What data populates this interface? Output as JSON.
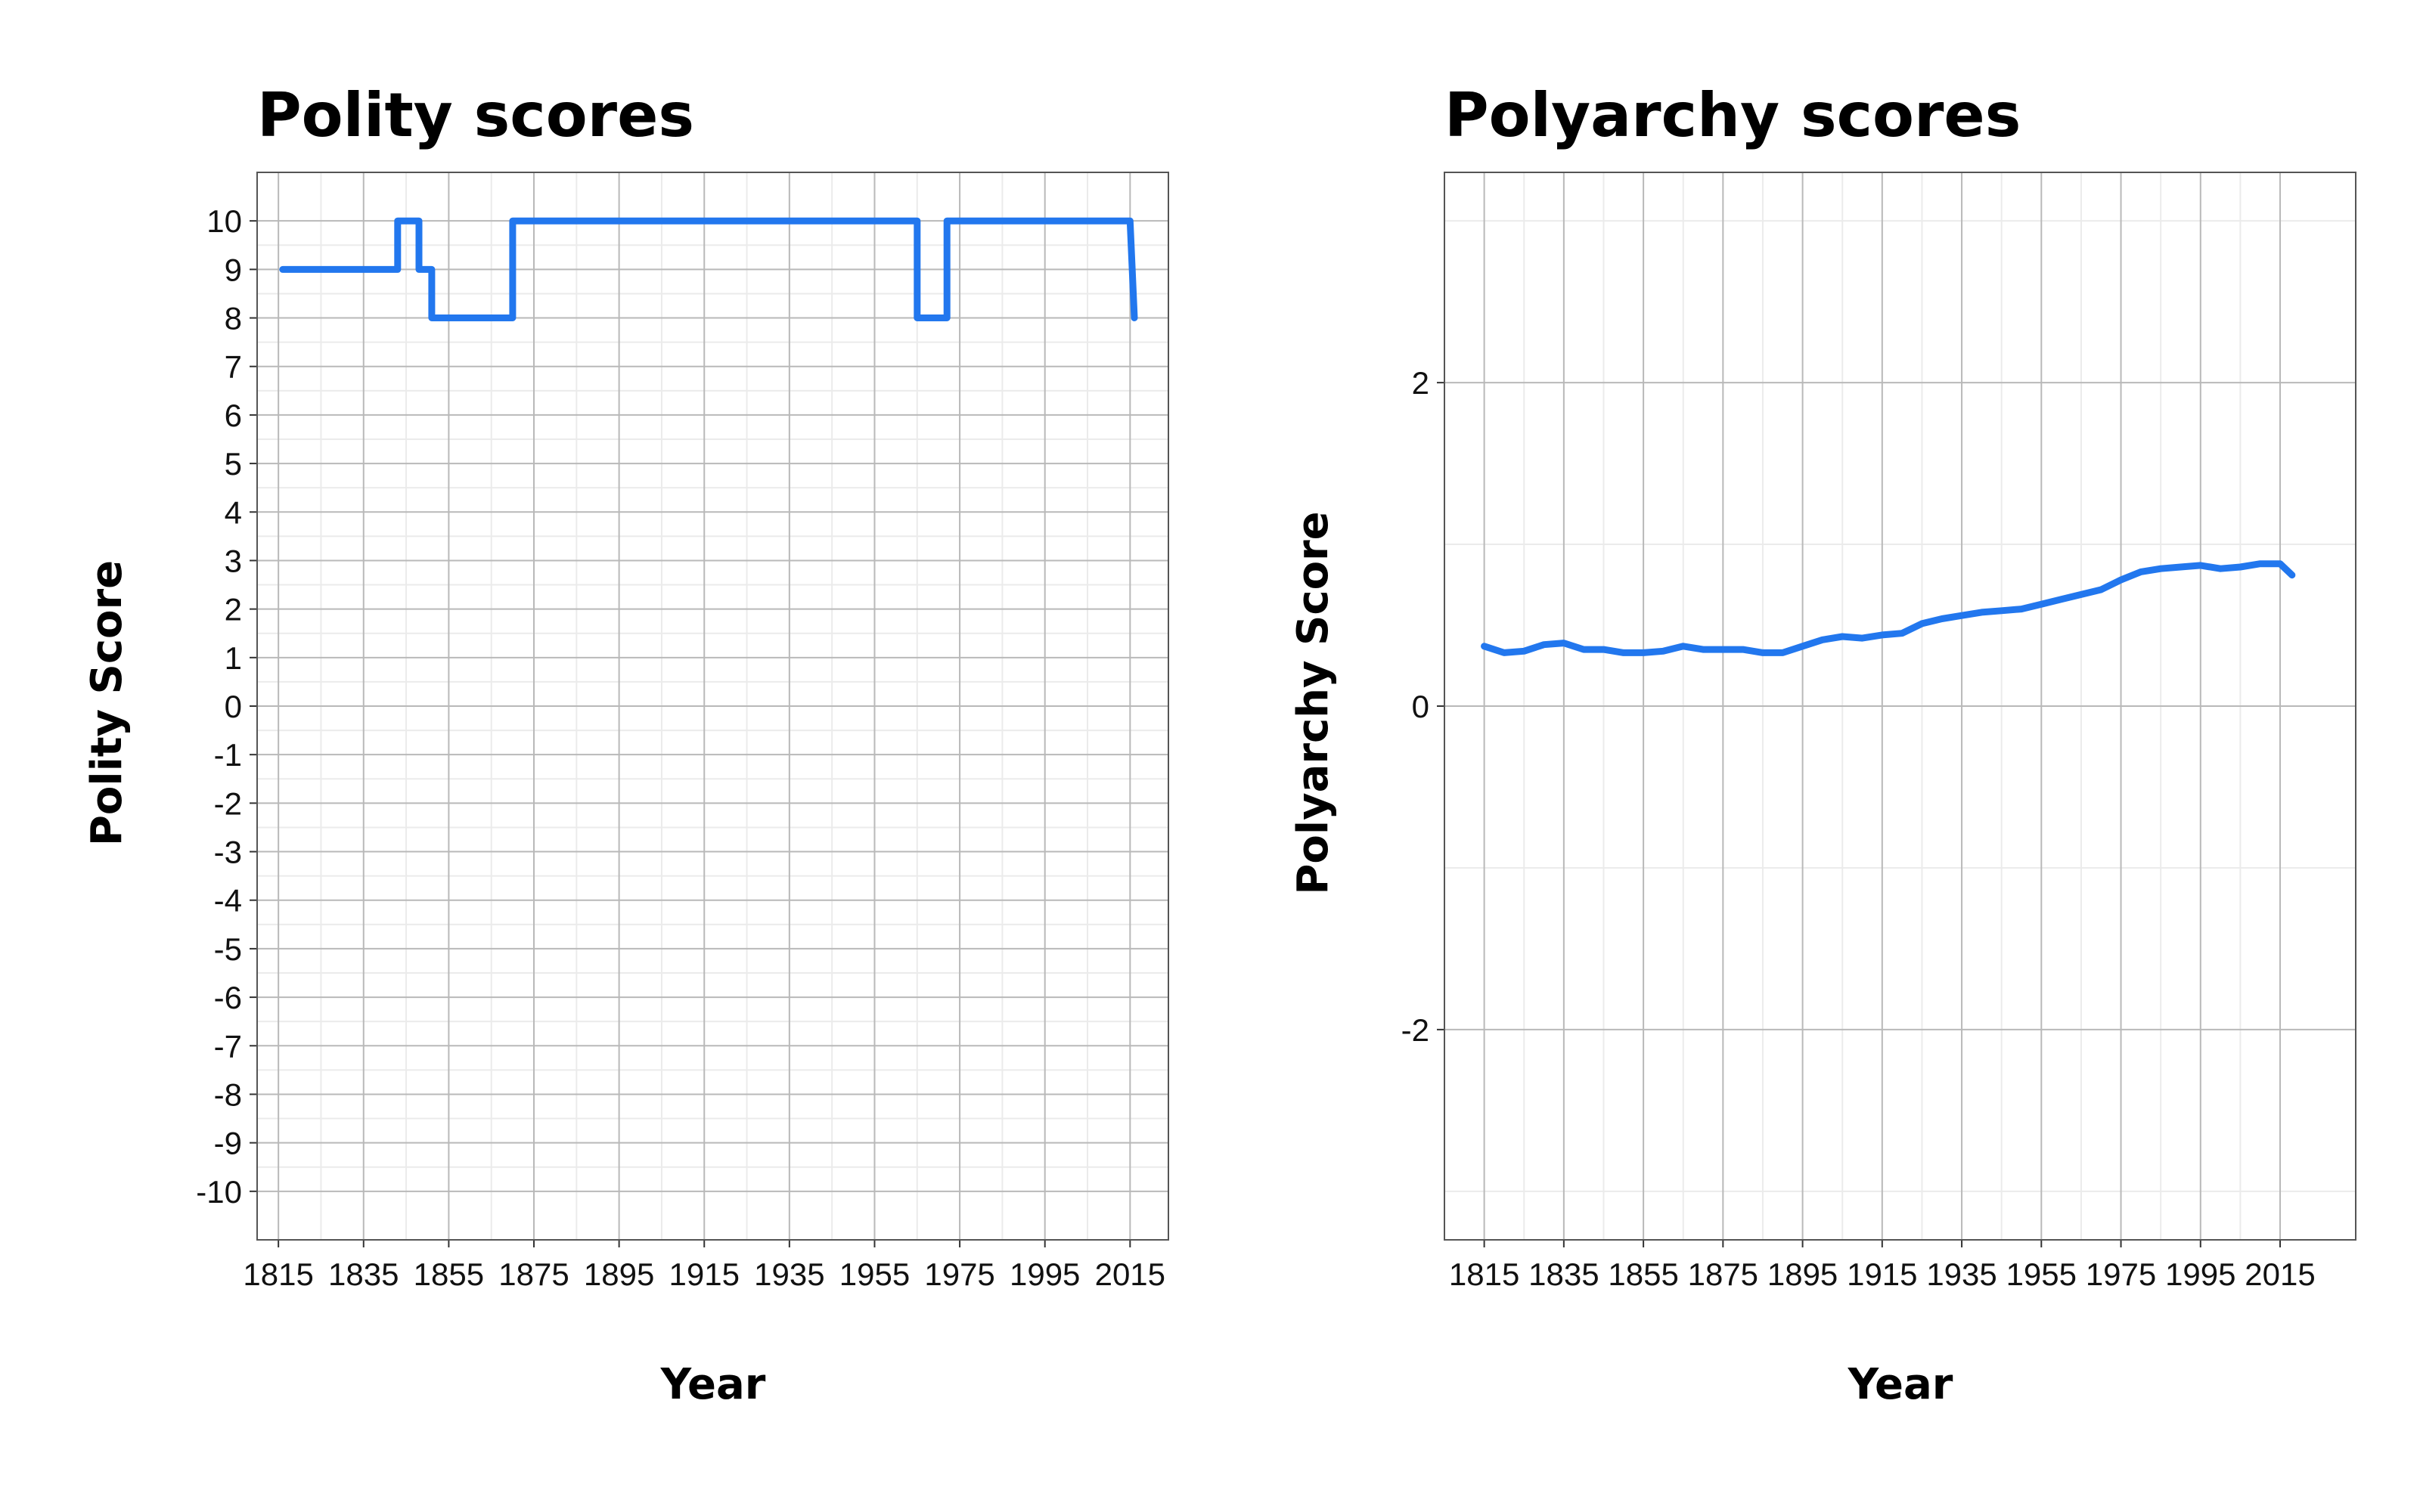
{
  "chart_data": [
    {
      "type": "line",
      "title": "Polity scores",
      "xlabel": "Year",
      "ylabel": "Polity Score",
      "xlim": [
        1810,
        2024
      ],
      "ylim": [
        -11,
        11
      ],
      "x_ticks": [
        1815,
        1835,
        1855,
        1875,
        1895,
        1915,
        1935,
        1955,
        1975,
        1995,
        2015
      ],
      "y_ticks": [
        -10,
        -9,
        -8,
        -7,
        -6,
        -5,
        -4,
        -3,
        -2,
        -1,
        0,
        1,
        2,
        3,
        4,
        5,
        6,
        7,
        8,
        9,
        10
      ],
      "grid": true,
      "legend": "none",
      "color": "#2277ee",
      "series": [
        {
          "x": [
            1816,
            1843,
            1843,
            1848,
            1848,
            1851,
            1851,
            1870,
            1870,
            1965,
            1965,
            1972,
            1972,
            2015,
            2016
          ],
          "values": [
            9,
            9,
            10,
            10,
            9,
            9,
            8,
            8,
            10,
            10,
            8,
            8,
            10,
            10,
            8
          ]
        }
      ]
    },
    {
      "type": "line",
      "title": "Polyarchy scores",
      "xlabel": "Year",
      "ylabel": "Polyarchy Score",
      "xlim": [
        1805,
        2034
      ],
      "ylim": [
        -3.3,
        3.3
      ],
      "x_ticks": [
        1815,
        1835,
        1855,
        1875,
        1895,
        1915,
        1935,
        1955,
        1975,
        1995,
        2015
      ],
      "y_ticks": [
        -2,
        0,
        2
      ],
      "grid": true,
      "legend": "none",
      "color": "#2277ee",
      "series": [
        {
          "x": [
            1815,
            1820,
            1825,
            1830,
            1835,
            1840,
            1845,
            1850,
            1855,
            1860,
            1865,
            1870,
            1875,
            1880,
            1885,
            1890,
            1895,
            1900,
            1905,
            1910,
            1915,
            1920,
            1925,
            1930,
            1935,
            1940,
            1945,
            1950,
            1955,
            1960,
            1965,
            1970,
            1975,
            1980,
            1985,
            1990,
            1995,
            2000,
            2005,
            2010,
            2015,
            2018
          ],
          "values": [
            0.37,
            0.33,
            0.34,
            0.38,
            0.39,
            0.35,
            0.35,
            0.33,
            0.33,
            0.34,
            0.37,
            0.35,
            0.35,
            0.35,
            0.33,
            0.33,
            0.37,
            0.41,
            0.43,
            0.42,
            0.44,
            0.45,
            0.51,
            0.54,
            0.56,
            0.58,
            0.59,
            0.6,
            0.63,
            0.66,
            0.69,
            0.72,
            0.78,
            0.83,
            0.85,
            0.86,
            0.87,
            0.85,
            0.86,
            0.88,
            0.88,
            0.81
          ]
        }
      ]
    }
  ]
}
